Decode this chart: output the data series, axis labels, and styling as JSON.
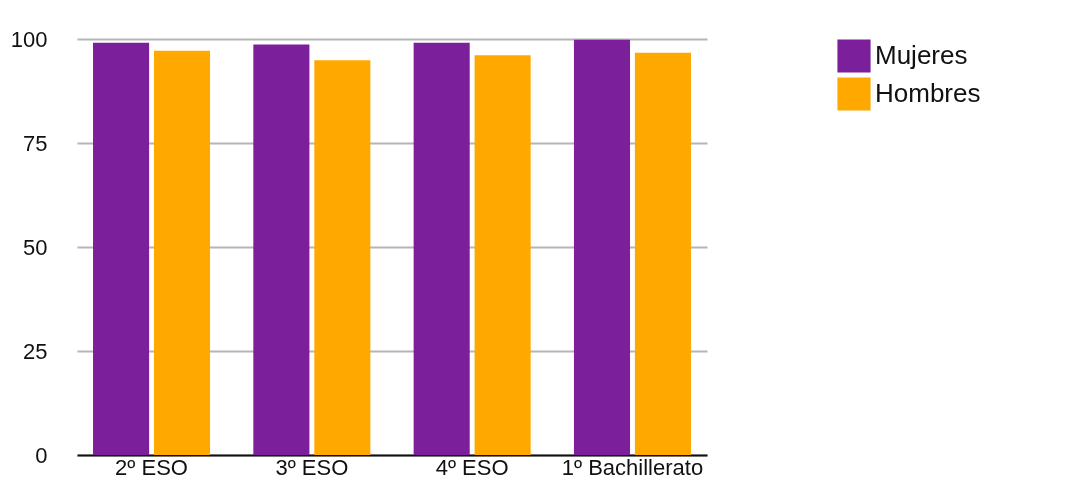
{
  "chart_data": {
    "type": "bar",
    "categories": [
      "2º ESO",
      "3º ESO",
      "4º ESO",
      "1º Bachillerato"
    ],
    "series": [
      {
        "name": "Mujeres",
        "color": "#7b1f9b",
        "values": [
          99.1,
          98.7,
          99.1,
          99.8
        ]
      },
      {
        "name": "Hombres",
        "color": "#ffa800",
        "values": [
          97.2,
          94.9,
          96.1,
          96.7
        ]
      }
    ],
    "ylim": [
      0,
      100
    ],
    "yticks": [
      0,
      25,
      50,
      75,
      100
    ],
    "grid": "y",
    "legend": "right"
  }
}
